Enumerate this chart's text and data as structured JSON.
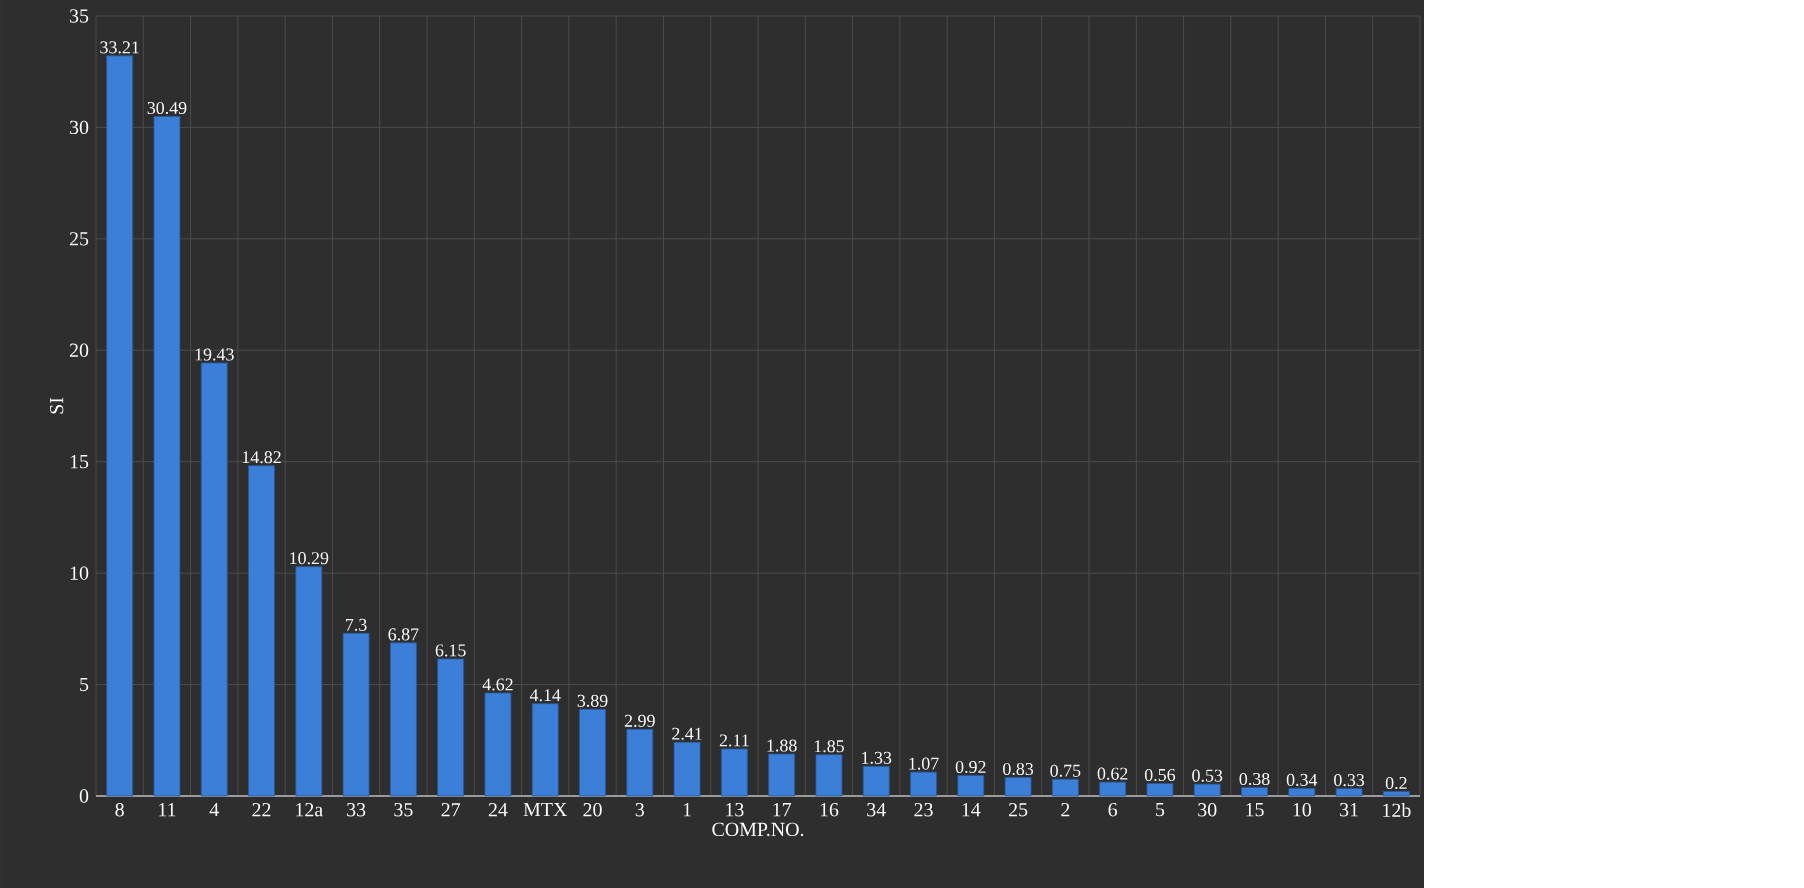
{
  "chart_data": {
    "type": "bar",
    "xlabel": "COMP.NO.",
    "ylabel": "SI",
    "categories": [
      "8",
      "11",
      "4",
      "22",
      "12a",
      "33",
      "35",
      "27",
      "24",
      "MTX",
      "20",
      "3",
      "1",
      "13",
      "17",
      "16",
      "34",
      "23",
      "14",
      "25",
      "2",
      "6",
      "5",
      "30",
      "15",
      "10",
      "31",
      "12b"
    ],
    "values": [
      33.21,
      30.49,
      19.43,
      14.82,
      10.29,
      7.3,
      6.87,
      6.15,
      4.62,
      4.14,
      3.89,
      2.99,
      2.41,
      2.11,
      1.88,
      1.85,
      1.33,
      1.07,
      0.92,
      0.83,
      0.75,
      0.62,
      0.56,
      0.53,
      0.38,
      0.34,
      0.33,
      0.2
    ],
    "color": "#3b7fd9",
    "ylim": [
      0,
      35
    ],
    "yticks": [
      0,
      5,
      10,
      15,
      20,
      25,
      30,
      35
    ],
    "grid": true,
    "data_labels": true
  }
}
